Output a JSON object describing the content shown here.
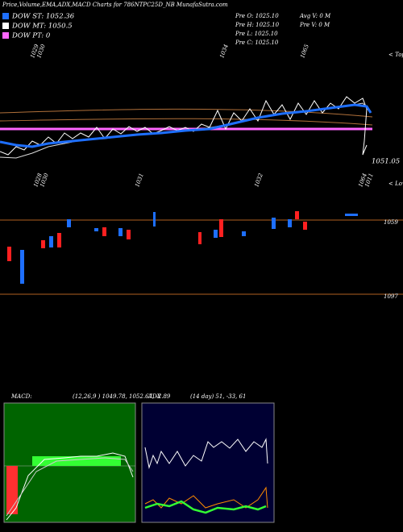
{
  "header": {
    "title": "Price,Volume,EMA,ADX,MACD Charts for 786NTPC25D_NB MunafaSutra.com"
  },
  "legend": [
    {
      "label": "DOW ST: 1052.36",
      "color": "#1e6fff"
    },
    {
      "label": "DOW MT: 1050.5",
      "color": "#ffffff"
    },
    {
      "label": "DOW PT: 0",
      "color": "#ff66ff"
    }
  ],
  "info": {
    "pre_open": "Pre  O: 1025.10",
    "pre_high": "Pre  H: 1025.10",
    "pre_low": "Pre  L: 1025.10",
    "pre_close": "Pre  C: 1025.10",
    "avg_volume": "Avg V: 0  M",
    "pre_volume": "Pre  V: 0  M"
  },
  "price_panel": {
    "top_labels": [
      "1029",
      "1030",
      "1034",
      "1065"
    ],
    "bottom_labels": [
      "1028",
      "1030",
      "1031",
      "1032",
      "1064",
      "1011"
    ],
    "tops": "< Tops",
    "lows": "< Lows",
    "last_price": "1051.05"
  },
  "volume_panel": {
    "upper_label": "1059",
    "lower_label": "1097"
  },
  "macd_panel": {
    "title": "MACD:",
    "values": "(12,26,9 ) 1049.78, 1052.67, -2.89"
  },
  "adx_panel": {
    "title": "ADX",
    "values": "(14  day) 51, -33, 61"
  }
}
